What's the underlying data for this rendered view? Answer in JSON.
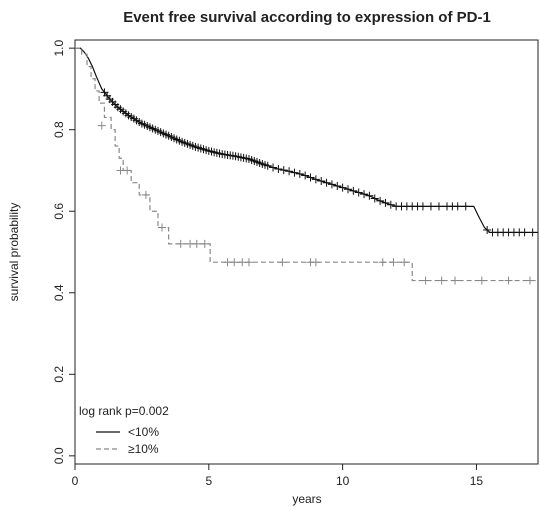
{
  "chart_data": {
    "type": "line",
    "title": "Event free survival according to expression of PD-1",
    "xlabel": "years",
    "ylabel": "survival probability",
    "xlim": [
      0,
      17.3
    ],
    "ylim": [
      -0.02,
      1.02
    ],
    "xticks": [
      0,
      5,
      10,
      15
    ],
    "yticks": [
      0.0,
      0.2,
      0.4,
      0.6,
      0.8,
      1.0
    ],
    "xtick_labels": [
      "0",
      "5",
      "10",
      "15"
    ],
    "ytick_labels": [
      "0.0",
      "0.2",
      "0.4",
      "0.6",
      "0.8",
      "1.0"
    ],
    "grid": false,
    "legend_position": "bottom-left",
    "annotation": "log rank p=0.002",
    "series": [
      {
        "name": "<10%",
        "style": "solid",
        "color": "#111111",
        "step": false,
        "points": [
          [
            0,
            1.0
          ],
          [
            0.2,
            1.0
          ],
          [
            0.35,
            0.99
          ],
          [
            0.5,
            0.975
          ],
          [
            0.65,
            0.955
          ],
          [
            0.8,
            0.93
          ],
          [
            1.0,
            0.9
          ],
          [
            1.3,
            0.875
          ],
          [
            1.6,
            0.855
          ],
          [
            2.0,
            0.835
          ],
          [
            2.5,
            0.815
          ],
          [
            3.0,
            0.8
          ],
          [
            3.5,
            0.785
          ],
          [
            4.0,
            0.77
          ],
          [
            4.5,
            0.758
          ],
          [
            5.0,
            0.748
          ],
          [
            5.5,
            0.74
          ],
          [
            6.0,
            0.735
          ],
          [
            6.5,
            0.728
          ],
          [
            7.0,
            0.716
          ],
          [
            7.5,
            0.705
          ],
          [
            8.0,
            0.698
          ],
          [
            8.5,
            0.69
          ],
          [
            9.0,
            0.678
          ],
          [
            9.5,
            0.668
          ],
          [
            10.0,
            0.658
          ],
          [
            10.5,
            0.648
          ],
          [
            11.0,
            0.638
          ],
          [
            11.3,
            0.628
          ],
          [
            11.7,
            0.618
          ],
          [
            12.0,
            0.612
          ],
          [
            14.9,
            0.612
          ],
          [
            15.1,
            0.585
          ],
          [
            15.3,
            0.56
          ],
          [
            15.5,
            0.548
          ],
          [
            17.3,
            0.548
          ]
        ],
        "censored_x": [
          1.1,
          1.2,
          1.3,
          1.4,
          1.5,
          1.6,
          1.7,
          1.8,
          1.9,
          2.0,
          2.1,
          2.2,
          2.3,
          2.4,
          2.5,
          2.6,
          2.7,
          2.8,
          2.9,
          3.0,
          3.1,
          3.2,
          3.3,
          3.4,
          3.5,
          3.6,
          3.7,
          3.8,
          3.9,
          4.0,
          4.1,
          4.2,
          4.3,
          4.4,
          4.5,
          4.6,
          4.7,
          4.8,
          4.9,
          5.0,
          5.1,
          5.2,
          5.3,
          5.4,
          5.5,
          5.6,
          5.7,
          5.8,
          5.9,
          6.0,
          6.1,
          6.2,
          6.3,
          6.4,
          6.5,
          6.6,
          6.7,
          6.8,
          6.9,
          7.0,
          7.1,
          7.2,
          7.4,
          7.6,
          7.8,
          8.0,
          8.2,
          8.4,
          8.6,
          8.8,
          9.0,
          9.2,
          9.4,
          9.6,
          9.8,
          10.0,
          10.2,
          10.4,
          10.6,
          10.8,
          11.0,
          11.2,
          11.4,
          11.6,
          11.8,
          12.0,
          12.2,
          12.4,
          12.6,
          12.8,
          13.0,
          13.3,
          13.6,
          13.9,
          14.1,
          14.3,
          14.6,
          15.4,
          15.6,
          15.8,
          16.0,
          16.2,
          16.4,
          16.6,
          16.8,
          17.1
        ]
      },
      {
        "name": "≥10%",
        "style": "dashed",
        "color": "#888888",
        "step": true,
        "points": [
          [
            0,
            1.0
          ],
          [
            0.25,
            1.0
          ],
          [
            0.25,
            0.985
          ],
          [
            0.45,
            0.985
          ],
          [
            0.45,
            0.955
          ],
          [
            0.6,
            0.955
          ],
          [
            0.6,
            0.925
          ],
          [
            0.75,
            0.925
          ],
          [
            0.75,
            0.895
          ],
          [
            0.9,
            0.895
          ],
          [
            0.9,
            0.865
          ],
          [
            1.1,
            0.865
          ],
          [
            1.1,
            0.83
          ],
          [
            1.35,
            0.83
          ],
          [
            1.35,
            0.8
          ],
          [
            1.5,
            0.8
          ],
          [
            1.5,
            0.76
          ],
          [
            1.65,
            0.76
          ],
          [
            1.65,
            0.73
          ],
          [
            1.8,
            0.73
          ],
          [
            1.8,
            0.7
          ],
          [
            2.1,
            0.7
          ],
          [
            2.1,
            0.67
          ],
          [
            2.4,
            0.67
          ],
          [
            2.4,
            0.64
          ],
          [
            2.8,
            0.64
          ],
          [
            2.8,
            0.6
          ],
          [
            3.1,
            0.6
          ],
          [
            3.1,
            0.56
          ],
          [
            3.5,
            0.56
          ],
          [
            3.5,
            0.52
          ],
          [
            5.05,
            0.52
          ],
          [
            5.05,
            0.475
          ],
          [
            12.6,
            0.475
          ],
          [
            12.6,
            0.43
          ],
          [
            17.3,
            0.43
          ]
        ],
        "censored": [
          [
            1.0,
            0.81
          ],
          [
            1.7,
            0.7
          ],
          [
            1.95,
            0.7
          ],
          [
            2.65,
            0.64
          ],
          [
            3.25,
            0.56
          ],
          [
            3.95,
            0.52
          ],
          [
            4.3,
            0.52
          ],
          [
            4.55,
            0.52
          ],
          [
            4.85,
            0.52
          ],
          [
            5.7,
            0.475
          ],
          [
            5.95,
            0.475
          ],
          [
            6.25,
            0.475
          ],
          [
            6.5,
            0.475
          ],
          [
            7.75,
            0.475
          ],
          [
            8.8,
            0.475
          ],
          [
            9.0,
            0.475
          ],
          [
            11.5,
            0.475
          ],
          [
            11.9,
            0.475
          ],
          [
            12.3,
            0.475
          ],
          [
            13.1,
            0.43
          ],
          [
            13.7,
            0.43
          ],
          [
            14.2,
            0.43
          ],
          [
            15.2,
            0.43
          ],
          [
            16.2,
            0.43
          ],
          [
            17.0,
            0.43
          ]
        ]
      }
    ]
  }
}
